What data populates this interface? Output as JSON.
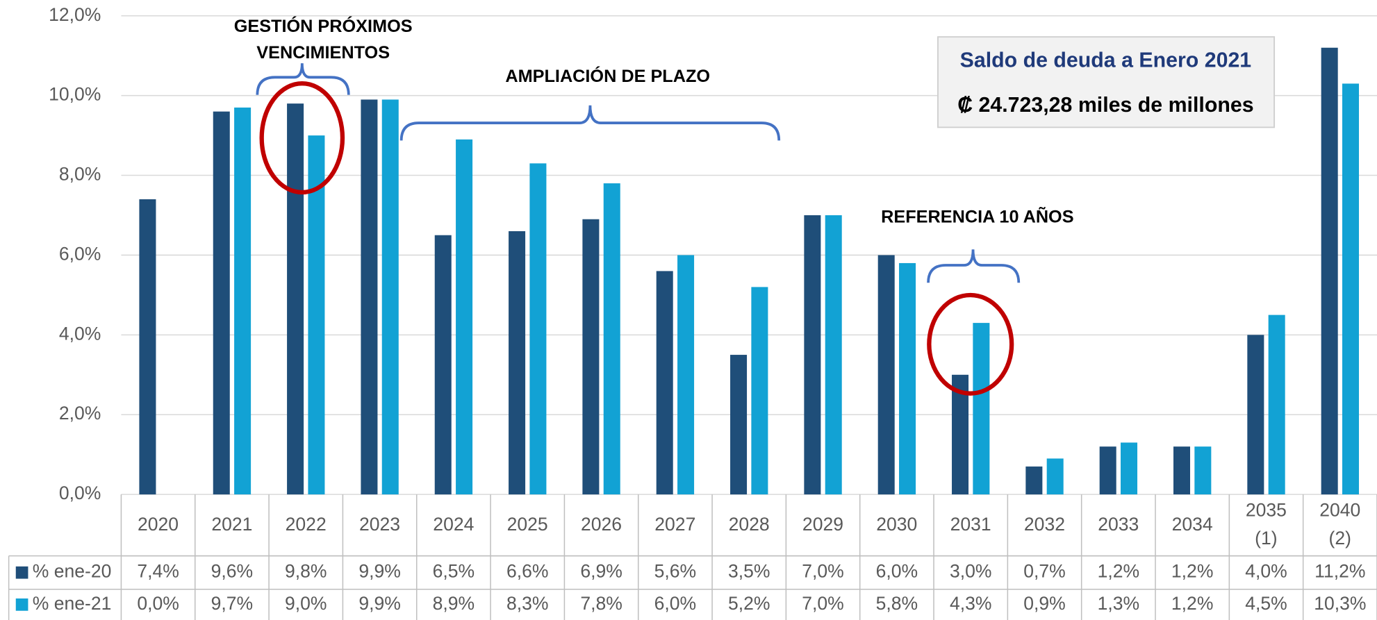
{
  "chart_data": {
    "type": "bar",
    "categories": [
      "2020",
      "2021",
      "2022",
      "2023",
      "2024",
      "2025",
      "2026",
      "2027",
      "2028",
      "2029",
      "2030",
      "2031",
      "2032",
      "2033",
      "2034",
      "2035 (1)",
      "2040 (2)"
    ],
    "series": [
      {
        "name": "% ene-20",
        "color": "#1f4e79",
        "values": [
          7.4,
          9.6,
          9.8,
          9.9,
          6.5,
          6.6,
          6.9,
          5.6,
          3.5,
          7.0,
          6.0,
          3.0,
          0.7,
          1.2,
          1.2,
          4.0,
          11.2
        ],
        "value_labels": [
          "7,4%",
          "9,6%",
          "9,8%",
          "9,9%",
          "6,5%",
          "6,6%",
          "6,9%",
          "5,6%",
          "3,5%",
          "7,0%",
          "6,0%",
          "3,0%",
          "0,7%",
          "1,2%",
          "1,2%",
          "4,0%",
          "11,2%"
        ]
      },
      {
        "name": "% ene-21",
        "color": "#12a2d4",
        "values": [
          0.0,
          9.7,
          9.0,
          9.9,
          8.9,
          8.3,
          7.8,
          6.0,
          5.2,
          7.0,
          5.8,
          4.3,
          0.9,
          1.3,
          1.2,
          4.5,
          10.3
        ],
        "value_labels": [
          "0,0%",
          "9,7%",
          "9,0%",
          "9,9%",
          "8,9%",
          "8,3%",
          "7,8%",
          "6,0%",
          "5,2%",
          "7,0%",
          "5,8%",
          "4,3%",
          "0,9%",
          "1,3%",
          "1,2%",
          "4,5%",
          "10,3%"
        ]
      }
    ],
    "ylim": [
      0,
      12
    ],
    "yticks": [
      {
        "value": 0,
        "label": "0,0%"
      },
      {
        "value": 2,
        "label": "2,0%"
      },
      {
        "value": 4,
        "label": "4,0%"
      },
      {
        "value": 6,
        "label": "6,0%"
      },
      {
        "value": 8,
        "label": "8,0%"
      },
      {
        "value": 10,
        "label": "10,0%"
      },
      {
        "value": 12,
        "label": "12,0%"
      }
    ],
    "grid": true,
    "annotations": [
      "GESTIÓN PRÓXIMOS",
      "VENCIMIENTOS",
      "AMPLIACIÓN DE PLAZO",
      "REFERENCIA 10 AÑOS"
    ],
    "info_box": [
      "Saldo de deuda a Enero 2021",
      "₡ 24.723,28 miles de millones"
    ]
  }
}
